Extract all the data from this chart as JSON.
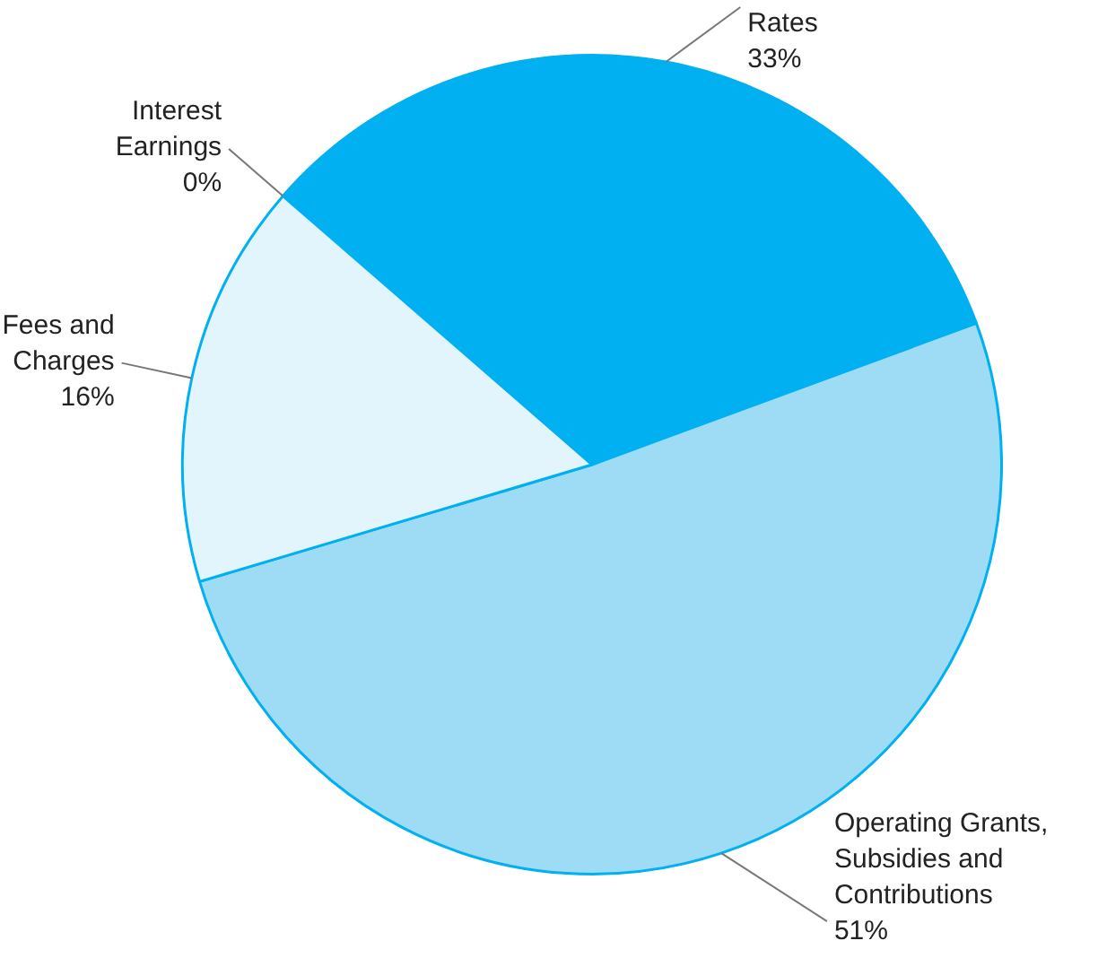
{
  "chart_data": {
    "type": "pie",
    "categories": [
      "Rates",
      "Operating Grants, Subsidies and Contributions",
      "Fees and Charges",
      "Interest Earnings"
    ],
    "values": [
      33,
      51,
      16,
      0
    ],
    "value_labels": [
      "33%",
      "51%",
      "16%",
      "0%"
    ],
    "colors": [
      "#00b0f0",
      "#9edcf5",
      "#e3f5fc",
      "#00b0f0"
    ],
    "legend": false
  }
}
